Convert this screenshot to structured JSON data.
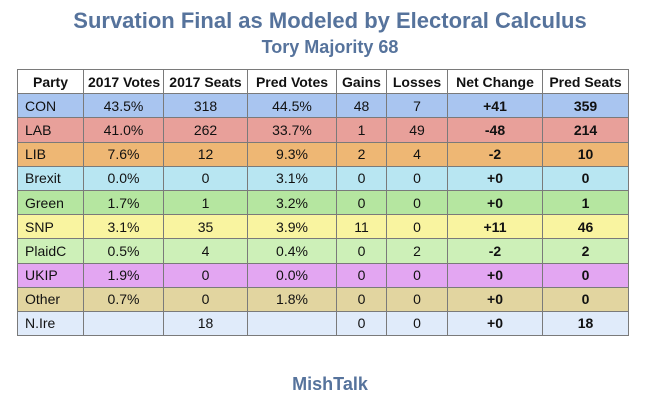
{
  "title": "Survation Final as Modeled by Electoral Calculus",
  "subtitle": "Tory Majority 68",
  "footer": "MishTalk",
  "chart_data": {
    "type": "table",
    "columns": [
      "Party",
      "2017 Votes",
      "2017 Seats",
      "Pred Votes",
      "Gains",
      "Losses",
      "Net Change",
      "Pred Seats"
    ],
    "rows": [
      {
        "party": "CON",
        "votes_2017": "43.5%",
        "seats_2017": "318",
        "pred_votes": "44.5%",
        "gains": "48",
        "losses": "7",
        "net_change": "+41",
        "pred_seats": "359",
        "color": "#a9c5f0"
      },
      {
        "party": "LAB",
        "votes_2017": "41.0%",
        "seats_2017": "262",
        "pred_votes": "33.7%",
        "gains": "1",
        "losses": "49",
        "net_change": "-48",
        "pred_seats": "214",
        "color": "#e8a09a"
      },
      {
        "party": "LIB",
        "votes_2017": "7.6%",
        "seats_2017": "12",
        "pred_votes": "9.3%",
        "gains": "2",
        "losses": "4",
        "net_change": "-2",
        "pred_seats": "10",
        "color": "#eeb774"
      },
      {
        "party": "Brexit",
        "votes_2017": "0.0%",
        "seats_2017": "0",
        "pred_votes": "3.1%",
        "gains": "0",
        "losses": "0",
        "net_change": "+0",
        "pred_seats": "0",
        "color": "#b8e6f2"
      },
      {
        "party": "Green",
        "votes_2017": "1.7%",
        "seats_2017": "1",
        "pred_votes": "3.2%",
        "gains": "0",
        "losses": "0",
        "net_change": "+0",
        "pred_seats": "1",
        "color": "#b5e6a0"
      },
      {
        "party": "SNP",
        "votes_2017": "3.1%",
        "seats_2017": "35",
        "pred_votes": "3.9%",
        "gains": "11",
        "losses": "0",
        "net_change": "+11",
        "pred_seats": "46",
        "color": "#f9f4a0"
      },
      {
        "party": "PlaidC",
        "votes_2017": "0.5%",
        "seats_2017": "4",
        "pred_votes": "0.4%",
        "gains": "0",
        "losses": "2",
        "net_change": "-2",
        "pred_seats": "2",
        "color": "#cdf0b8"
      },
      {
        "party": "UKIP",
        "votes_2017": "1.9%",
        "seats_2017": "0",
        "pred_votes": "0.0%",
        "gains": "0",
        "losses": "0",
        "net_change": "+0",
        "pred_seats": "0",
        "color": "#e3a6f2"
      },
      {
        "party": "Other",
        "votes_2017": "0.7%",
        "seats_2017": "0",
        "pred_votes": "1.8%",
        "gains": "0",
        "losses": "0",
        "net_change": "+0",
        "pred_seats": "0",
        "color": "#e2d5a0"
      },
      {
        "party": "N.Ire",
        "votes_2017": "",
        "seats_2017": "18",
        "pred_votes": "",
        "gains": "0",
        "losses": "0",
        "net_change": "+0",
        "pred_seats": "18",
        "color": "#e0ebfa"
      }
    ]
  }
}
